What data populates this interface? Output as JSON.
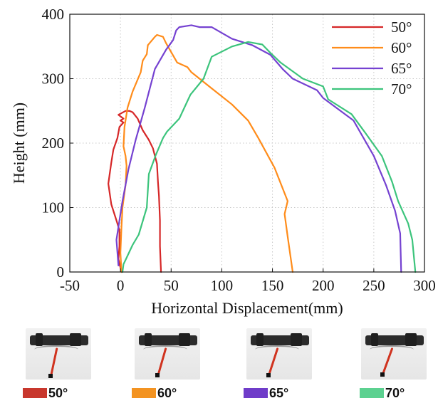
{
  "chart_data": {
    "type": "line",
    "title": "",
    "xlabel": "Horizontal Displacement(mm)",
    "ylabel": "Height (mm)",
    "xlim": [
      -50,
      300
    ],
    "ylim": [
      0,
      400
    ],
    "x_ticks": [
      "-50",
      "0",
      "50",
      "100",
      "150",
      "200",
      "250",
      "300"
    ],
    "x_tick_values": [
      -50,
      0,
      50,
      100,
      150,
      200,
      250,
      300
    ],
    "y_ticks": [
      "0",
      "100",
      "200",
      "300",
      "400"
    ],
    "y_tick_values": [
      0,
      100,
      200,
      300,
      400
    ],
    "grid": true,
    "legend_position": "top-right",
    "series": [
      {
        "name": "50°",
        "color": "#d62728",
        "points": [
          [
            1,
            0
          ],
          [
            -2,
            20
          ],
          [
            -1,
            40
          ],
          [
            -1,
            65
          ],
          [
            -4,
            80
          ],
          [
            -9,
            105
          ],
          [
            -12,
            137
          ],
          [
            -9,
            170
          ],
          [
            -7,
            190
          ],
          [
            -3,
            208
          ],
          [
            -1,
            225
          ],
          [
            3,
            232
          ],
          [
            0,
            235
          ],
          [
            3,
            238
          ],
          [
            -2,
            244
          ],
          [
            5,
            250
          ],
          [
            9,
            250
          ],
          [
            12,
            248
          ],
          [
            17,
            238
          ],
          [
            22,
            220
          ],
          [
            28,
            205
          ],
          [
            32,
            192
          ],
          [
            36,
            168
          ],
          [
            37,
            140
          ],
          [
            38,
            118
          ],
          [
            39,
            80
          ],
          [
            39,
            40
          ],
          [
            40,
            0
          ]
        ]
      },
      {
        "name": "60°",
        "color": "#ff8c1a",
        "points": [
          [
            1,
            0
          ],
          [
            0,
            30
          ],
          [
            1,
            70
          ],
          [
            2,
            100
          ],
          [
            5,
            135
          ],
          [
            6,
            165
          ],
          [
            5,
            180
          ],
          [
            3,
            195
          ],
          [
            4,
            225
          ],
          [
            7,
            255
          ],
          [
            12,
            280
          ],
          [
            20,
            310
          ],
          [
            22,
            328
          ],
          [
            26,
            338
          ],
          [
            27,
            352
          ],
          [
            34,
            365
          ],
          [
            36,
            368
          ],
          [
            42,
            365
          ],
          [
            45,
            355
          ],
          [
            56,
            325
          ],
          [
            66,
            318
          ],
          [
            70,
            310
          ],
          [
            90,
            285
          ],
          [
            110,
            260
          ],
          [
            126,
            235
          ],
          [
            136,
            208
          ],
          [
            152,
            162
          ],
          [
            165,
            110
          ],
          [
            162,
            90
          ],
          [
            165,
            55
          ],
          [
            170,
            0
          ]
        ]
      },
      {
        "name": "65°",
        "color": "#7542d1",
        "points": [
          [
            -2,
            10
          ],
          [
            -3,
            30
          ],
          [
            -4,
            50
          ],
          [
            0,
            90
          ],
          [
            2,
            110
          ],
          [
            8,
            160
          ],
          [
            15,
            205
          ],
          [
            24,
            255
          ],
          [
            34,
            315
          ],
          [
            45,
            345
          ],
          [
            52,
            360
          ],
          [
            55,
            375
          ],
          [
            58,
            380
          ],
          [
            70,
            383
          ],
          [
            78,
            380
          ],
          [
            90,
            380
          ],
          [
            110,
            362
          ],
          [
            130,
            352
          ],
          [
            148,
            337
          ],
          [
            160,
            315
          ],
          [
            170,
            300
          ],
          [
            194,
            282
          ],
          [
            200,
            270
          ],
          [
            230,
            235
          ],
          [
            250,
            180
          ],
          [
            262,
            135
          ],
          [
            271,
            95
          ],
          [
            276,
            60
          ],
          [
            277,
            0
          ]
        ]
      },
      {
        "name": "70°",
        "color": "#3cc47c",
        "points": [
          [
            2,
            0
          ],
          [
            3,
            12
          ],
          [
            6,
            22
          ],
          [
            12,
            42
          ],
          [
            18,
            58
          ],
          [
            26,
            100
          ],
          [
            28,
            152
          ],
          [
            35,
            182
          ],
          [
            42,
            208
          ],
          [
            46,
            218
          ],
          [
            58,
            238
          ],
          [
            69,
            275
          ],
          [
            82,
            300
          ],
          [
            90,
            334
          ],
          [
            110,
            350
          ],
          [
            126,
            357
          ],
          [
            140,
            353
          ],
          [
            148,
            340
          ],
          [
            158,
            325
          ],
          [
            180,
            300
          ],
          [
            200,
            288
          ],
          [
            205,
            268
          ],
          [
            228,
            245
          ],
          [
            242,
            215
          ],
          [
            258,
            180
          ],
          [
            268,
            140
          ],
          [
            274,
            110
          ],
          [
            284,
            75
          ],
          [
            288,
            50
          ],
          [
            291,
            0
          ]
        ]
      }
    ]
  },
  "photos": [
    {
      "label": "50°",
      "color": "#c8372d",
      "leg_angle": 50
    },
    {
      "label": "60°",
      "color": "#f39321",
      "leg_angle": 60
    },
    {
      "label": "65°",
      "color": "#6f3cc9",
      "leg_angle": 65
    },
    {
      "label": "70°",
      "color": "#5cd190",
      "leg_angle": 70
    }
  ]
}
